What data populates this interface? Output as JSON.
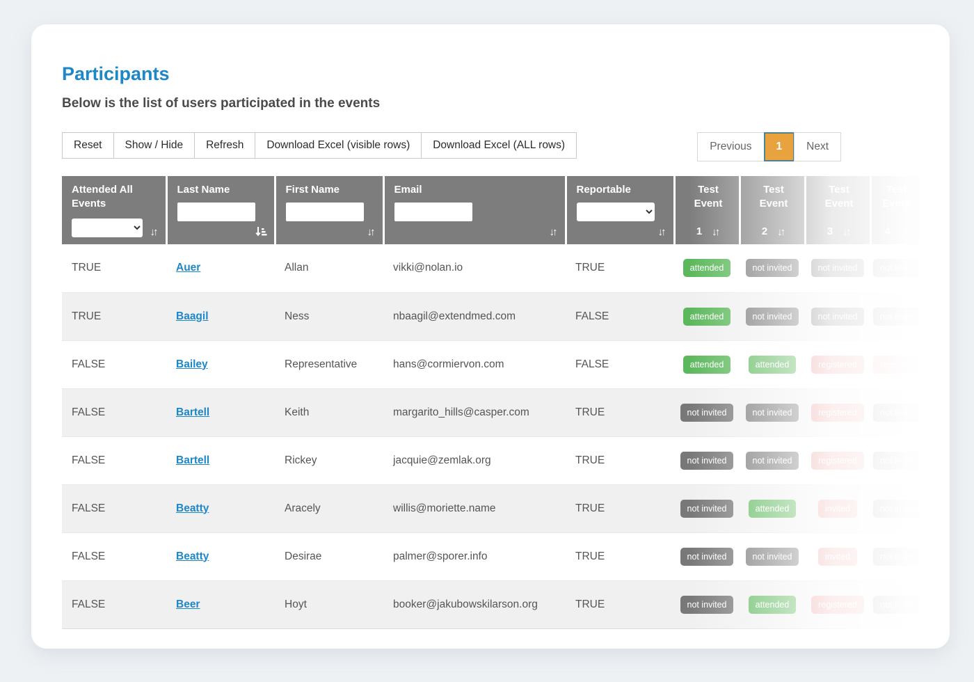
{
  "page": {
    "title": "Participants",
    "subtitle": "Below is the list of users participated in the events"
  },
  "toolbar": {
    "reset_label": "Reset",
    "show_hide_label": "Show / Hide",
    "refresh_label": "Refresh",
    "download_visible_label": "Download Excel (visible rows)",
    "download_all_label": "Download Excel (ALL rows)"
  },
  "pagination": {
    "previous_label": "Previous",
    "current_page": "1",
    "next_label": "Next"
  },
  "table": {
    "columns": {
      "attended_all": {
        "label": "Attended All Events",
        "filter": "select",
        "filter_value": ""
      },
      "last_name": {
        "label": "Last Name",
        "filter": "input",
        "filter_value": "",
        "sorted": "ascending"
      },
      "first_name": {
        "label": "First Name",
        "filter": "input",
        "filter_value": ""
      },
      "email": {
        "label": "Email",
        "filter": "input",
        "filter_value": ""
      },
      "reportable": {
        "label": "Reportable",
        "filter": "select",
        "filter_value": ""
      },
      "event1": {
        "title": "Test Event",
        "number": "1"
      },
      "event2": {
        "title": "Test Event",
        "number": "2"
      },
      "event3": {
        "title": "Test Event",
        "number": "3"
      },
      "event4": {
        "title": "Test Event",
        "number": "4"
      }
    },
    "rows": [
      {
        "attended_all": "TRUE",
        "last_name": "Auer",
        "first_name": "Allan",
        "email": "vikki@nolan.io",
        "reportable": "TRUE",
        "events": [
          "attended",
          "not invited",
          "not invited",
          "not invited"
        ]
      },
      {
        "attended_all": "TRUE",
        "last_name": "Baagil",
        "first_name": "Ness",
        "email": "nbaagil@extendmed.com",
        "reportable": "FALSE",
        "events": [
          "attended",
          "not invited",
          "not invited",
          "not invited"
        ]
      },
      {
        "attended_all": "FALSE",
        "last_name": "Bailey",
        "first_name": "Representative",
        "email": "hans@cormiervon.com",
        "reportable": "FALSE",
        "events": [
          "attended",
          "attended",
          "registered",
          "registered"
        ]
      },
      {
        "attended_all": "FALSE",
        "last_name": "Bartell",
        "first_name": "Keith",
        "email": "margarito_hills@casper.com",
        "reportable": "TRUE",
        "events": [
          "not invited",
          "not invited",
          "registered",
          "not invited"
        ]
      },
      {
        "attended_all": "FALSE",
        "last_name": "Bartell",
        "first_name": "Rickey",
        "email": "jacquie@zemlak.org",
        "reportable": "TRUE",
        "events": [
          "not invited",
          "not invited",
          "registered",
          "not invited"
        ]
      },
      {
        "attended_all": "FALSE",
        "last_name": "Beatty",
        "first_name": "Aracely",
        "email": "willis@moriette.name",
        "reportable": "TRUE",
        "events": [
          "not invited",
          "attended",
          "invited",
          "not invited"
        ]
      },
      {
        "attended_all": "FALSE",
        "last_name": "Beatty",
        "first_name": "Desirae",
        "email": "palmer@sporer.info",
        "reportable": "TRUE",
        "events": [
          "not invited",
          "not invited",
          "invited",
          "not invited"
        ]
      },
      {
        "attended_all": "FALSE",
        "last_name": "Beer",
        "first_name": "Hoyt",
        "email": "booker@jakubowskilarson.org",
        "reportable": "TRUE",
        "events": [
          "not invited",
          "attended",
          "registered",
          "not invited"
        ]
      }
    ]
  },
  "badge_colors": {
    "attended": "#5cb85c",
    "not invited": "#787878",
    "registered": "#e8918f",
    "invited": "#e8918f"
  },
  "colors": {
    "title_blue": "#1d87c8",
    "header_gray": "#7d7d7d",
    "current_page_bg": "#e8a33e",
    "current_page_border": "#4e8296",
    "stripe_gray": "#f0f0f0"
  }
}
